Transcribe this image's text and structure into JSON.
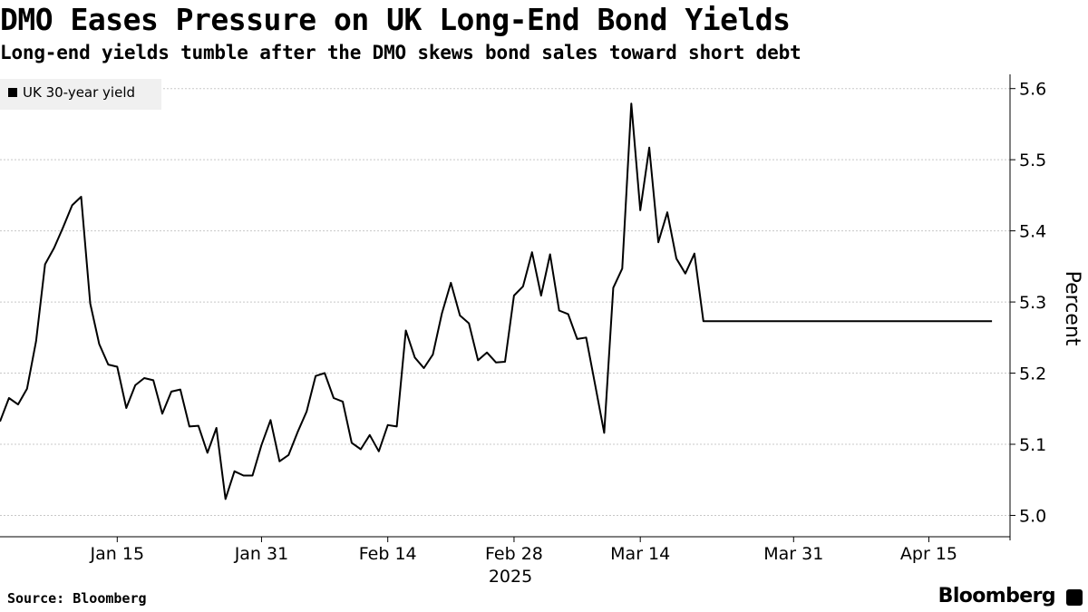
{
  "title": "DMO Eases Pressure on UK Long-End Bond Yields",
  "subtitle": "Long-end yields tumble after the DMO skews bond sales toward short debt",
  "source": "Source: Bloomberg",
  "brand": "Bloomberg",
  "brand_icon": "bloomberg-terminal-icon",
  "chart_data": {
    "type": "line",
    "title": "DMO Eases Pressure on UK Long-End Bond Yields",
    "subtitle": "Long-end yields tumble after the DMO skews bond sales toward short debt",
    "ylabel": "Percent",
    "ylim": [
      4.97,
      5.62
    ],
    "yticks": [
      5.0,
      5.1,
      5.2,
      5.3,
      5.4,
      5.5,
      5.6
    ],
    "ytick_labels": [
      "5.0",
      "5.1",
      "5.2",
      "5.3",
      "5.4",
      "5.5",
      "5.6"
    ],
    "y_axis_side": "right",
    "xlim": [
      "2025-01-02",
      "2025-04-24"
    ],
    "xticks": [
      "2025-01-15",
      "2025-01-31",
      "2025-02-14",
      "2025-02-28",
      "2025-03-14",
      "2025-03-31",
      "2025-04-15"
    ],
    "xtick_labels": [
      "Jan 15",
      "Jan 31",
      "Feb 14",
      "Feb 28",
      "Mar 14",
      "Mar 31",
      "Apr 15"
    ],
    "x_year_label": "2025",
    "grid": "horizontal dashed",
    "legend": "top-left",
    "colors": {
      "line": "#000000",
      "grid": "#c8c8c8",
      "legend_bg": "#f0f0f0"
    },
    "series": [
      {
        "name": "UK 30-year yield",
        "x": [
          "2025-01-02",
          "2025-01-03",
          "2025-01-04",
          "2025-01-05",
          "2025-01-06",
          "2025-01-07",
          "2025-01-08",
          "2025-01-09",
          "2025-01-10",
          "2025-01-11",
          "2025-01-12",
          "2025-01-13",
          "2025-01-14",
          "2025-01-15",
          "2025-01-16",
          "2025-01-17",
          "2025-01-18",
          "2025-01-19",
          "2025-01-20",
          "2025-01-21",
          "2025-01-22",
          "2025-01-23",
          "2025-01-24",
          "2025-01-25",
          "2025-01-26",
          "2025-01-27",
          "2025-01-28",
          "2025-01-29",
          "2025-01-30",
          "2025-01-31",
          "2025-02-01",
          "2025-02-02",
          "2025-02-03",
          "2025-02-04",
          "2025-02-05",
          "2025-02-06",
          "2025-02-07",
          "2025-02-08",
          "2025-02-09",
          "2025-02-10",
          "2025-02-11",
          "2025-02-12",
          "2025-02-13",
          "2025-02-14",
          "2025-02-15",
          "2025-02-16",
          "2025-02-17",
          "2025-02-18",
          "2025-02-19",
          "2025-02-20",
          "2025-02-21",
          "2025-02-22",
          "2025-02-23",
          "2025-02-24",
          "2025-02-25",
          "2025-02-26",
          "2025-02-27",
          "2025-02-28",
          "2025-03-01",
          "2025-03-02",
          "2025-03-03",
          "2025-03-04",
          "2025-03-05",
          "2025-03-06",
          "2025-03-07",
          "2025-03-08",
          "2025-03-09",
          "2025-03-10",
          "2025-03-11",
          "2025-03-12",
          "2025-03-13",
          "2025-03-14",
          "2025-03-15",
          "2025-03-16",
          "2025-03-17",
          "2025-03-18",
          "2025-03-19",
          "2025-03-20",
          "2025-03-21",
          "2025-03-22",
          "2025-03-23",
          "2025-03-24",
          "2025-03-25",
          "2025-03-26",
          "2025-03-27",
          "2025-03-28",
          "2025-03-29",
          "2025-03-30",
          "2025-03-31",
          "2025-04-01",
          "2025-04-02",
          "2025-04-03",
          "2025-04-04",
          "2025-04-05",
          "2025-04-06",
          "2025-04-07",
          "2025-04-08",
          "2025-04-09",
          "2025-04-10",
          "2025-04-11",
          "2025-04-12",
          "2025-04-13",
          "2025-04-14",
          "2025-04-15",
          "2025-04-16",
          "2025-04-17",
          "2025-04-18",
          "2025-04-19",
          "2025-04-20",
          "2025-04-21",
          "2025-04-22"
        ],
        "values": [
          5.132,
          5.165,
          5.156,
          5.178,
          5.245,
          5.353,
          5.376,
          5.405,
          5.436,
          5.448,
          5.298,
          5.241,
          5.212,
          5.209,
          5.151,
          5.183,
          5.193,
          5.19,
          5.143,
          5.174,
          5.177,
          5.125,
          5.126,
          5.088,
          5.123,
          5.023,
          5.062,
          5.056,
          5.056,
          5.099,
          5.134,
          5.076,
          5.085,
          5.117,
          5.146,
          5.196,
          5.2,
          5.165,
          5.16,
          5.102,
          5.093,
          5.113,
          5.09,
          5.127,
          5.125,
          5.26,
          5.222,
          5.207,
          5.226,
          5.284,
          5.327,
          5.281,
          5.27,
          5.218,
          5.229,
          5.215,
          5.216,
          5.309,
          5.322,
          5.37,
          5.309,
          5.367,
          5.288,
          5.283,
          5.248,
          5.25,
          5.183,
          5.116,
          5.32,
          5.347,
          5.579,
          5.429,
          5.517,
          5.384,
          5.426,
          5.361,
          5.34,
          5.368,
          5.273,
          5.273,
          5.273,
          5.273,
          5.273,
          5.273,
          5.273,
          5.273,
          5.273,
          5.273,
          5.273,
          5.273,
          5.273,
          5.273,
          5.273,
          5.273,
          5.273,
          5.273,
          5.273,
          5.273,
          5.273,
          5.273,
          5.273,
          5.273,
          5.273,
          5.273,
          5.273,
          5.273,
          5.273,
          5.273,
          5.273,
          5.273,
          5.273
        ]
      }
    ]
  }
}
